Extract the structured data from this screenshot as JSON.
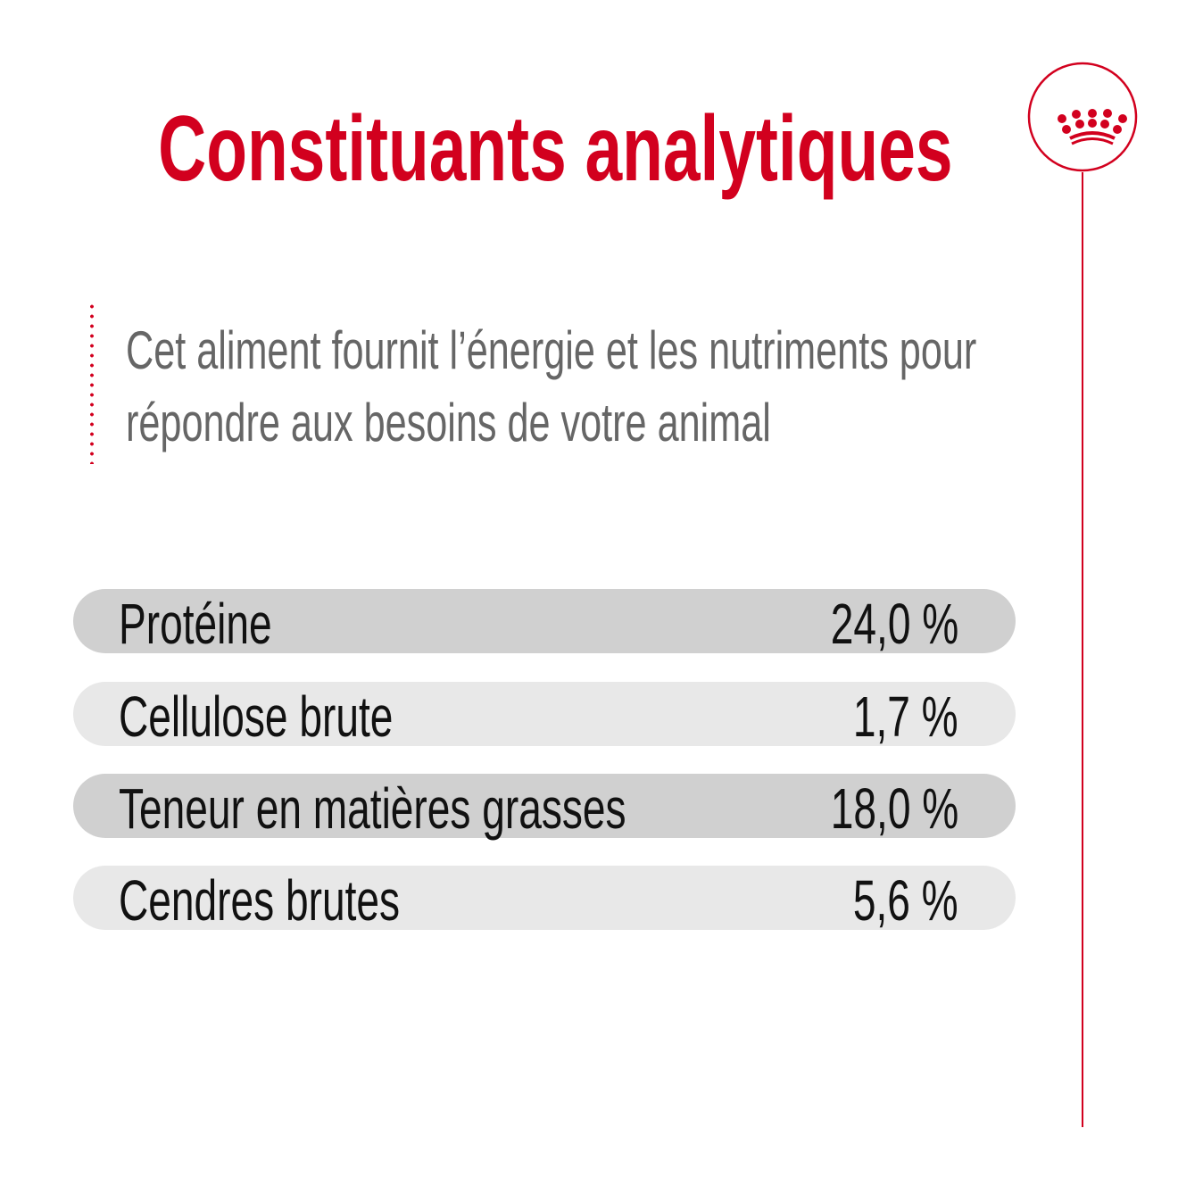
{
  "title": "Constituants analytiques",
  "description": {
    "line1": "Cet aliment fournit l’énergie et les nutriments pour",
    "line2": "répondre aux besoins de votre animal"
  },
  "rows": [
    {
      "label": "Protéine",
      "value": "24,0 %"
    },
    {
      "label": "Cellulose brute",
      "value": "1,7 %"
    },
    {
      "label": "Teneur en matières grasses",
      "value": "18,0 %"
    },
    {
      "label": "Cendres brutes",
      "value": "5,6 %"
    }
  ],
  "colors": {
    "accent": "#d2001e",
    "row_dark": "#d0d0d0",
    "row_light": "#e8e8e8"
  },
  "logo": {
    "icon": "royal-crown-icon"
  }
}
